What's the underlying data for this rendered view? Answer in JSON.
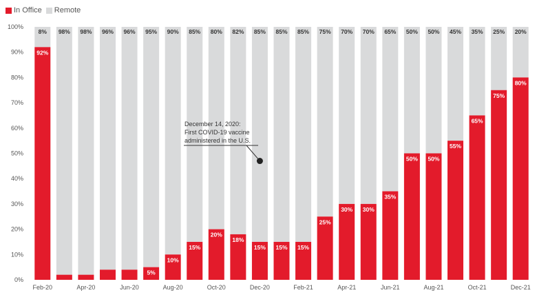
{
  "chart_data": {
    "type": "bar",
    "stacked": true,
    "categories": [
      "Feb-20",
      "Mar-20",
      "Apr-20",
      "May-20",
      "Jun-20",
      "Jul-20",
      "Aug-20",
      "Sep-20",
      "Oct-20",
      "Nov-20",
      "Dec-20",
      "Jan-21",
      "Feb-21",
      "Mar-21",
      "Apr-21",
      "May-21",
      "Jun-21",
      "Jul-21",
      "Aug-21",
      "Sep-21",
      "Oct-21",
      "Nov-21",
      "Dec-21"
    ],
    "x_tick_labels": [
      "Feb-20",
      "",
      "Apr-20",
      "",
      "Jun-20",
      "",
      "Aug-20",
      "",
      "Oct-20",
      "",
      "Dec-20",
      "",
      "Feb-21",
      "",
      "Apr-21",
      "",
      "Jun-21",
      "",
      "Aug-21",
      "",
      "Oct-21",
      "",
      "Dec-21"
    ],
    "series": [
      {
        "name": "In Office",
        "color": "#e31b2b",
        "values": [
          92,
          2,
          2,
          4,
          4,
          5,
          10,
          15,
          20,
          18,
          15,
          15,
          15,
          25,
          30,
          30,
          35,
          50,
          50,
          55,
          65,
          75,
          80
        ],
        "data_labels": [
          "92%",
          "",
          "",
          "",
          "",
          "5%",
          "10%",
          "15%",
          "20%",
          "18%",
          "15%",
          "15%",
          "15%",
          "25%",
          "30%",
          "30%",
          "35%",
          "50%",
          "50%",
          "55%",
          "65%",
          "75%",
          "80%"
        ]
      },
      {
        "name": "Remote",
        "color": "#d9dadb",
        "values": [
          8,
          98,
          98,
          96,
          96,
          95,
          90,
          85,
          80,
          82,
          85,
          85,
          85,
          75,
          70,
          70,
          65,
          50,
          50,
          45,
          35,
          25,
          20
        ],
        "data_labels": [
          "8%",
          "98%",
          "98%",
          "96%",
          "96%",
          "95%",
          "90%",
          "85%",
          "80%",
          "82%",
          "85%",
          "85%",
          "85%",
          "75%",
          "70%",
          "70%",
          "65%",
          "50%",
          "50%",
          "45%",
          "35%",
          "25%",
          "20%"
        ]
      }
    ],
    "ylim": [
      0,
      100
    ],
    "y_ticks": [
      "0%",
      "10%",
      "20%",
      "30%",
      "40%",
      "50%",
      "60%",
      "70%",
      "80%",
      "90%",
      "100%"
    ],
    "grid": false,
    "legend_position": "top-left",
    "annotation": {
      "lines": [
        "December 14, 2020:",
        "First COVID-19 vaccine",
        "administered in the U.S."
      ],
      "category": "Dec-20",
      "value": 47
    }
  }
}
